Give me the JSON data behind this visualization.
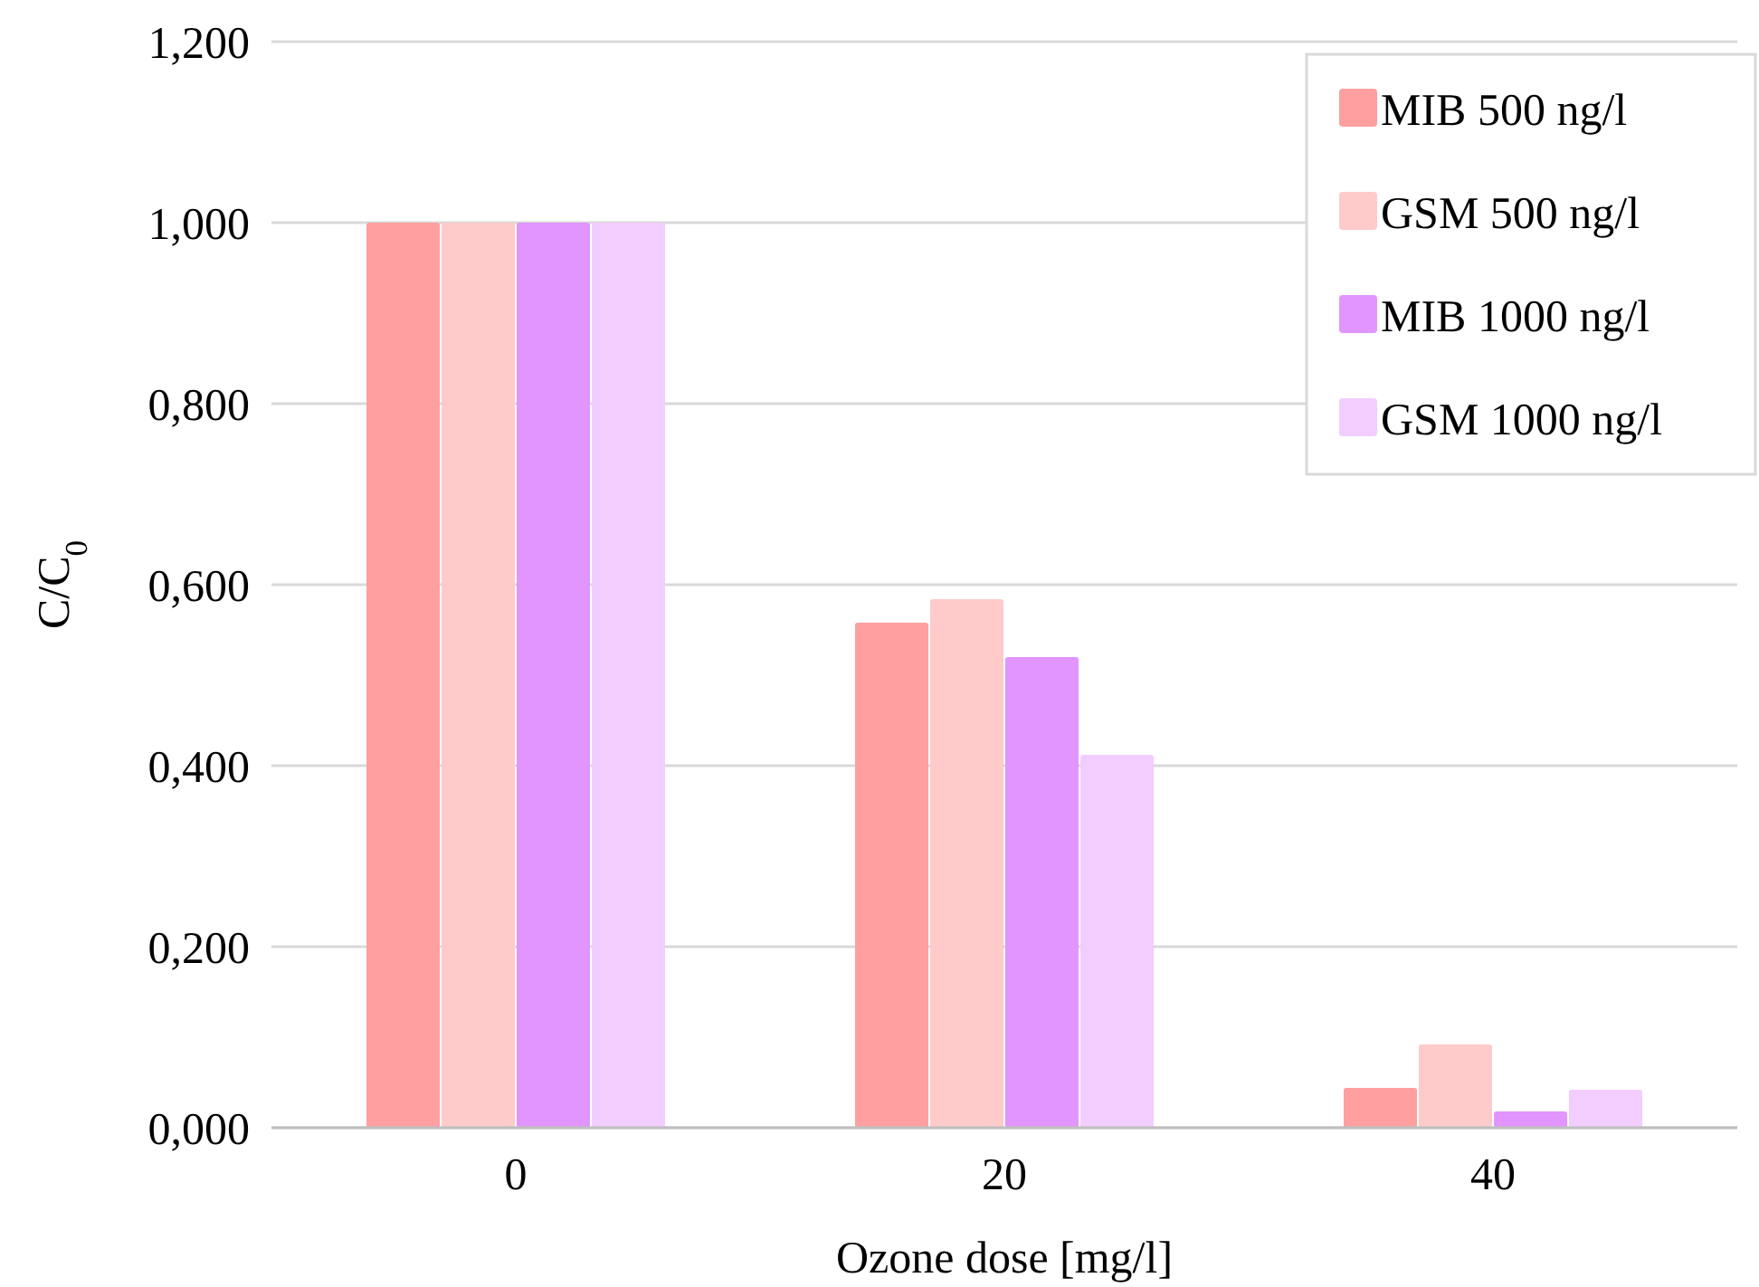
{
  "chart_data": {
    "type": "bar",
    "xlabel": "Ozone dose [mg/l]",
    "ylabel": "C/C$_{0}$",
    "categories": [
      "0",
      "20",
      "40"
    ],
    "series": [
      {
        "name": "MIB 500 ng/l",
        "color": "#ff9f9f",
        "values": [
          1.0,
          0.558,
          0.044
        ]
      },
      {
        "name": "GSM 500 ng/l",
        "color": "#ffcaca",
        "values": [
          1.0,
          0.584,
          0.092
        ]
      },
      {
        "name": "MIB 1000 ng/l",
        "color": "#e295ff",
        "values": [
          1.0,
          0.52,
          0.018
        ]
      },
      {
        "name": "GSM 1000 ng/l",
        "color": "#f2cdff",
        "values": [
          1.0,
          0.412,
          0.042
        ]
      }
    ],
    "ylim": [
      0,
      1.2
    ],
    "yticks": [
      {
        "value": 0,
        "label": "0,000"
      },
      {
        "value": 0.2,
        "label": "0,200"
      },
      {
        "value": 0.4,
        "label": "0,400"
      },
      {
        "value": 0.6,
        "label": "0,600"
      },
      {
        "value": 0.8,
        "label": "0,800"
      },
      {
        "value": 1.0,
        "label": "1,000"
      },
      {
        "value": 1.2,
        "label": "1,200"
      }
    ],
    "grid": "y",
    "legend": "top right"
  }
}
